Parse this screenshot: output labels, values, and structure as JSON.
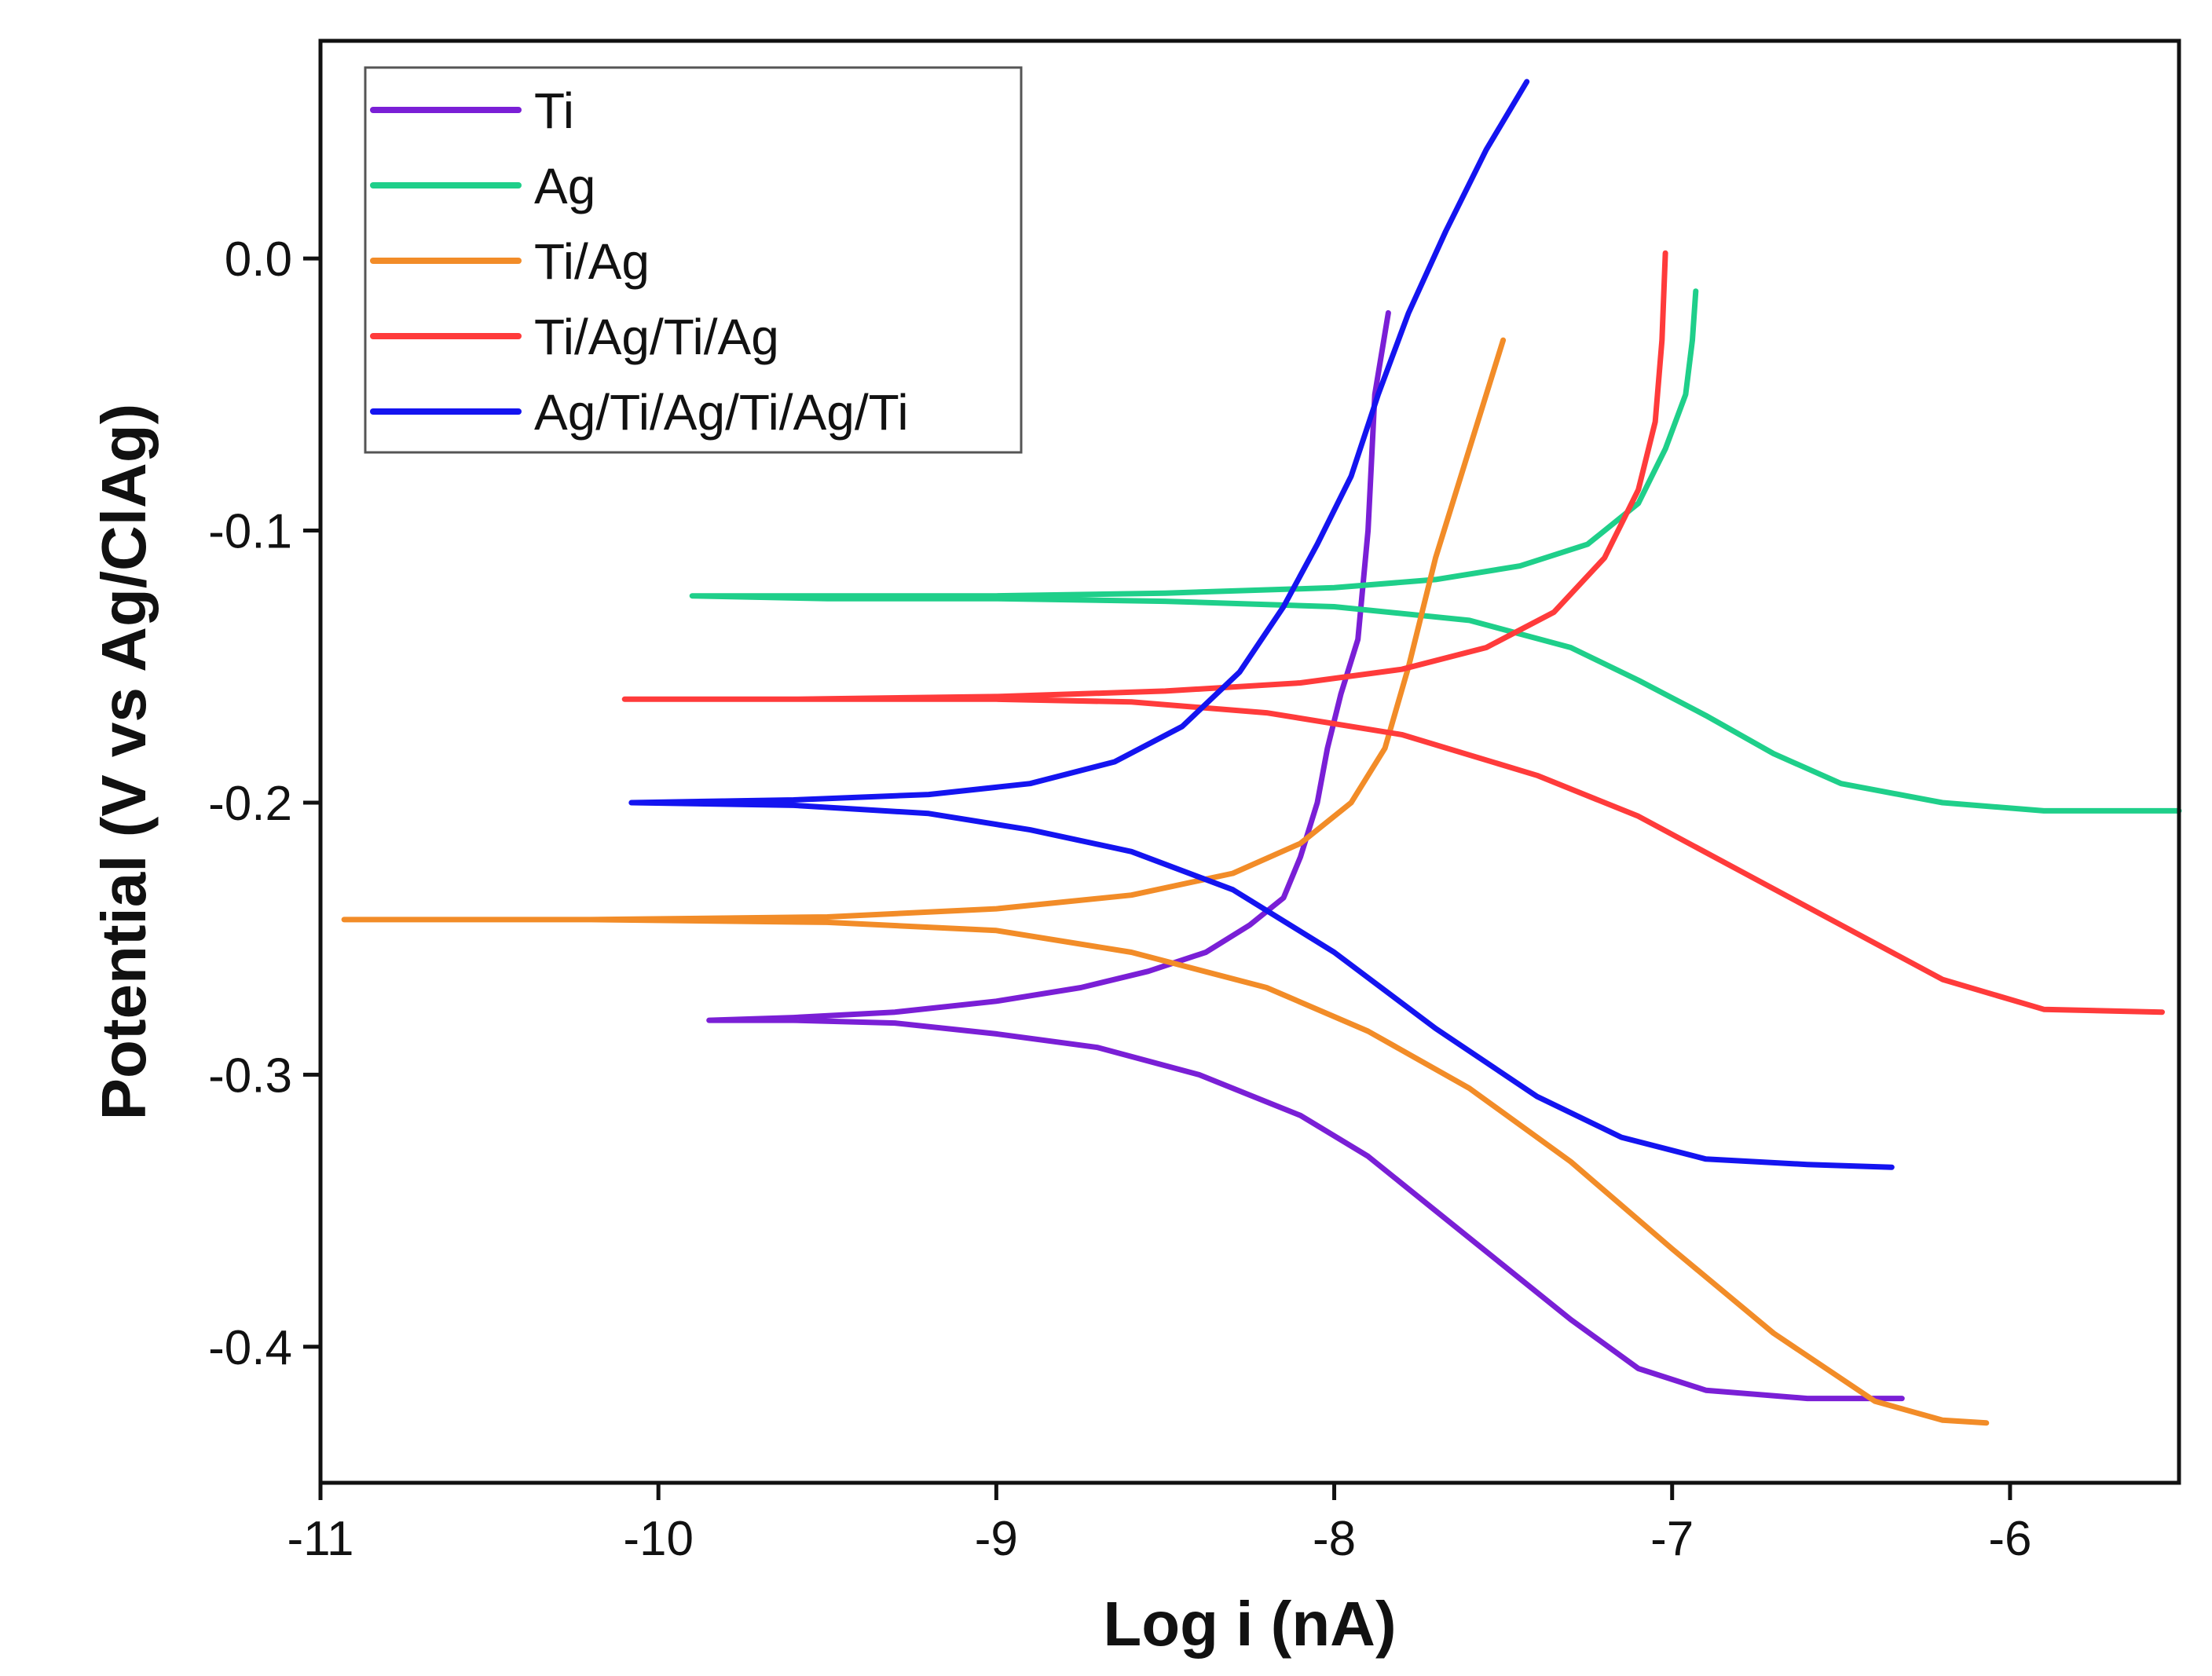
{
  "chart_data": {
    "type": "line",
    "title": "",
    "xlabel": "Log i (nA)",
    "ylabel": "Potential (V vs Ag/ClAg)",
    "xlim": [
      -11,
      -5.5
    ],
    "ylim": [
      -0.45,
      0.08
    ],
    "xticks": [
      -11,
      -10,
      -9,
      -8,
      -7,
      -6
    ],
    "xtick_labels": [
      "-11",
      "-10",
      "-9",
      "-8",
      "-7",
      "-6"
    ],
    "yticks": [
      0.0,
      -0.1,
      -0.2,
      -0.3,
      -0.4
    ],
    "ytick_labels": [
      "0.0",
      "-0.1",
      "-0.2",
      "-0.3",
      "-0.4"
    ],
    "grid": false,
    "legend_position": "top-left",
    "series": [
      {
        "name": "Ti",
        "color": "#7a1fd6",
        "points": [
          [
            -7.84,
            -0.02
          ],
          [
            -7.88,
            -0.05
          ],
          [
            -7.9,
            -0.1
          ],
          [
            -7.93,
            -0.14
          ],
          [
            -7.98,
            -0.16
          ],
          [
            -8.02,
            -0.18
          ],
          [
            -8.05,
            -0.2
          ],
          [
            -8.1,
            -0.22
          ],
          [
            -8.15,
            -0.235
          ],
          [
            -8.25,
            -0.245
          ],
          [
            -8.38,
            -0.255
          ],
          [
            -8.55,
            -0.262
          ],
          [
            -8.75,
            -0.268
          ],
          [
            -9.0,
            -0.273
          ],
          [
            -9.3,
            -0.277
          ],
          [
            -9.6,
            -0.279
          ],
          [
            -9.85,
            -0.28
          ],
          [
            -9.6,
            -0.28
          ],
          [
            -9.3,
            -0.281
          ],
          [
            -9.0,
            -0.285
          ],
          [
            -8.7,
            -0.29
          ],
          [
            -8.4,
            -0.3
          ],
          [
            -8.1,
            -0.315
          ],
          [
            -7.9,
            -0.33
          ],
          [
            -7.7,
            -0.35
          ],
          [
            -7.5,
            -0.37
          ],
          [
            -7.3,
            -0.39
          ],
          [
            -7.1,
            -0.408
          ],
          [
            -6.9,
            -0.416
          ],
          [
            -6.6,
            -0.419
          ],
          [
            -6.32,
            -0.419
          ]
        ]
      },
      {
        "name": "Ag",
        "color": "#1fcf8a",
        "points": [
          [
            -6.93,
            -0.012
          ],
          [
            -6.94,
            -0.03
          ],
          [
            -6.96,
            -0.05
          ],
          [
            -7.02,
            -0.07
          ],
          [
            -7.1,
            -0.09
          ],
          [
            -7.25,
            -0.105
          ],
          [
            -7.45,
            -0.113
          ],
          [
            -7.7,
            -0.118
          ],
          [
            -8.0,
            -0.121
          ],
          [
            -8.5,
            -0.123
          ],
          [
            -9.0,
            -0.124
          ],
          [
            -9.5,
            -0.124
          ],
          [
            -9.9,
            -0.124
          ],
          [
            -9.5,
            -0.125
          ],
          [
            -9.0,
            -0.125
          ],
          [
            -8.5,
            -0.126
          ],
          [
            -8.0,
            -0.128
          ],
          [
            -7.6,
            -0.133
          ],
          [
            -7.3,
            -0.143
          ],
          [
            -7.1,
            -0.155
          ],
          [
            -6.9,
            -0.168
          ],
          [
            -6.7,
            -0.182
          ],
          [
            -6.5,
            -0.193
          ],
          [
            -6.2,
            -0.2
          ],
          [
            -5.9,
            -0.203
          ],
          [
            -5.5,
            -0.203
          ]
        ]
      },
      {
        "name": "Ti/Ag",
        "color": "#f28c28",
        "points": [
          [
            -7.5,
            -0.03
          ],
          [
            -7.6,
            -0.07
          ],
          [
            -7.7,
            -0.11
          ],
          [
            -7.78,
            -0.15
          ],
          [
            -7.85,
            -0.18
          ],
          [
            -7.95,
            -0.2
          ],
          [
            -8.1,
            -0.215
          ],
          [
            -8.3,
            -0.226
          ],
          [
            -8.6,
            -0.234
          ],
          [
            -9.0,
            -0.239
          ],
          [
            -9.5,
            -0.242
          ],
          [
            -10.2,
            -0.243
          ],
          [
            -10.93,
            -0.243
          ],
          [
            -10.2,
            -0.243
          ],
          [
            -9.5,
            -0.244
          ],
          [
            -9.0,
            -0.247
          ],
          [
            -8.6,
            -0.255
          ],
          [
            -8.2,
            -0.268
          ],
          [
            -7.9,
            -0.284
          ],
          [
            -7.6,
            -0.305
          ],
          [
            -7.3,
            -0.332
          ],
          [
            -7.0,
            -0.364
          ],
          [
            -6.7,
            -0.395
          ],
          [
            -6.4,
            -0.42
          ],
          [
            -6.2,
            -0.427
          ],
          [
            -6.07,
            -0.428
          ]
        ]
      },
      {
        "name": "Ti/Ag/Ti/Ag",
        "color": "#ff3b3b",
        "points": [
          [
            -7.02,
            0.002
          ],
          [
            -7.03,
            -0.03
          ],
          [
            -7.05,
            -0.06
          ],
          [
            -7.1,
            -0.085
          ],
          [
            -7.2,
            -0.11
          ],
          [
            -7.35,
            -0.13
          ],
          [
            -7.55,
            -0.143
          ],
          [
            -7.8,
            -0.151
          ],
          [
            -8.1,
            -0.156
          ],
          [
            -8.5,
            -0.159
          ],
          [
            -9.0,
            -0.161
          ],
          [
            -9.6,
            -0.162
          ],
          [
            -10.1,
            -0.162
          ],
          [
            -9.6,
            -0.162
          ],
          [
            -9.0,
            -0.162
          ],
          [
            -8.6,
            -0.163
          ],
          [
            -8.2,
            -0.167
          ],
          [
            -7.8,
            -0.175
          ],
          [
            -7.4,
            -0.19
          ],
          [
            -7.1,
            -0.205
          ],
          [
            -6.8,
            -0.225
          ],
          [
            -6.5,
            -0.245
          ],
          [
            -6.2,
            -0.265
          ],
          [
            -5.9,
            -0.276
          ],
          [
            -5.55,
            -0.277
          ]
        ]
      },
      {
        "name": "Ag/Ti/Ag/Ti/Ag/Ti",
        "color": "#1414f0",
        "points": [
          [
            -7.43,
            0.065
          ],
          [
            -7.55,
            0.04
          ],
          [
            -7.67,
            0.01
          ],
          [
            -7.78,
            -0.02
          ],
          [
            -7.87,
            -0.05
          ],
          [
            -7.95,
            -0.08
          ],
          [
            -8.05,
            -0.105
          ],
          [
            -8.15,
            -0.128
          ],
          [
            -8.28,
            -0.152
          ],
          [
            -8.45,
            -0.172
          ],
          [
            -8.65,
            -0.185
          ],
          [
            -8.9,
            -0.193
          ],
          [
            -9.2,
            -0.197
          ],
          [
            -9.6,
            -0.199
          ],
          [
            -10.08,
            -0.2
          ],
          [
            -9.6,
            -0.201
          ],
          [
            -9.2,
            -0.204
          ],
          [
            -8.9,
            -0.21
          ],
          [
            -8.6,
            -0.218
          ],
          [
            -8.3,
            -0.232
          ],
          [
            -8.0,
            -0.255
          ],
          [
            -7.7,
            -0.283
          ],
          [
            -7.4,
            -0.308
          ],
          [
            -7.15,
            -0.323
          ],
          [
            -6.9,
            -0.331
          ],
          [
            -6.6,
            -0.333
          ],
          [
            -6.35,
            -0.334
          ]
        ]
      }
    ]
  }
}
